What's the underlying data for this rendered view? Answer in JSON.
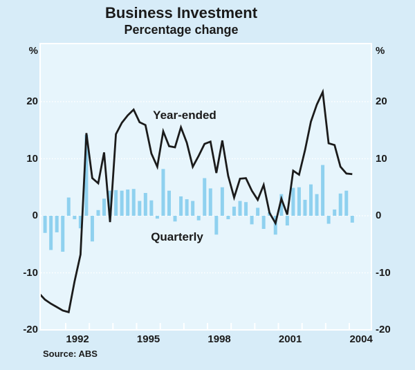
{
  "title": "Business Investment",
  "subtitle": "Percentage change",
  "source": "Source: ABS",
  "annotations": {
    "line_label": "Year-ended",
    "bar_label": "Quarterly"
  },
  "axis": {
    "unit_left": "%",
    "unit_right": "%",
    "y_ticks": [
      20,
      10,
      0,
      -10,
      -20
    ],
    "x_labels": [
      "1992",
      "1995",
      "1998",
      "2001",
      "2004"
    ]
  },
  "colors": {
    "page_bg": "#d7ecf8",
    "plot_bg": "#e7f5fc",
    "bar": "#8fd1ef",
    "line": "#1b1b1b",
    "grid": "#ffffff",
    "text": "#1a1a1a"
  },
  "chart_data": {
    "type": "mixed",
    "title": "Business Investment",
    "subtitle": "Percentage change",
    "ylabel": "%",
    "ylim": [
      -20,
      30.2
    ],
    "xlim": [
      1990.9,
      2005.0
    ],
    "grid_values": [
      20,
      10,
      0,
      -10
    ],
    "tick_years": [
      1992,
      1993,
      1994,
      1995,
      1996,
      1997,
      1998,
      1999,
      2000,
      2001,
      2002,
      2003,
      2004
    ],
    "series": [
      {
        "name": "Year-ended",
        "type": "line",
        "points": [
          {
            "q": "1990Q4",
            "v": -13.6
          },
          {
            "q": "1991Q1",
            "v": -14.7
          },
          {
            "q": "1991Q2",
            "v": -15.4
          },
          {
            "q": "1991Q3",
            "v": -16.0
          },
          {
            "q": "1991Q4",
            "v": -16.6
          },
          {
            "q": "1992Q1",
            "v": -16.9
          },
          {
            "q": "1992Q2",
            "v": -11.5
          },
          {
            "q": "1992Q3",
            "v": -6.8
          },
          {
            "q": "1992Q4",
            "v": 14.5
          },
          {
            "q": "1993Q1",
            "v": 6.6
          },
          {
            "q": "1993Q2",
            "v": 5.7
          },
          {
            "q": "1993Q3",
            "v": 11.1
          },
          {
            "q": "1993Q4",
            "v": -1.1
          },
          {
            "q": "1994Q1",
            "v": 14.3
          },
          {
            "q": "1994Q2",
            "v": 16.3
          },
          {
            "q": "1994Q3",
            "v": 17.6
          },
          {
            "q": "1994Q4",
            "v": 18.6
          },
          {
            "q": "1995Q1",
            "v": 16.4
          },
          {
            "q": "1995Q2",
            "v": 15.9
          },
          {
            "q": "1995Q3",
            "v": 10.9
          },
          {
            "q": "1995Q4",
            "v": 8.6
          },
          {
            "q": "1996Q1",
            "v": 14.8
          },
          {
            "q": "1996Q2",
            "v": 12.2
          },
          {
            "q": "1996Q3",
            "v": 12.0
          },
          {
            "q": "1996Q4",
            "v": 15.5
          },
          {
            "q": "1997Q1",
            "v": 12.8
          },
          {
            "q": "1997Q2",
            "v": 8.6
          },
          {
            "q": "1997Q3",
            "v": 10.5
          },
          {
            "q": "1997Q4",
            "v": 12.6
          },
          {
            "q": "1998Q1",
            "v": 13.0
          },
          {
            "q": "1998Q2",
            "v": 7.5
          },
          {
            "q": "1998Q3",
            "v": 13.2
          },
          {
            "q": "1998Q4",
            "v": 7.0
          },
          {
            "q": "1999Q1",
            "v": 3.2
          },
          {
            "q": "1999Q2",
            "v": 6.5
          },
          {
            "q": "1999Q3",
            "v": 6.6
          },
          {
            "q": "1999Q4",
            "v": 4.4
          },
          {
            "q": "2000Q1",
            "v": 2.8
          },
          {
            "q": "2000Q2",
            "v": 5.4
          },
          {
            "q": "2000Q3",
            "v": 0.5
          },
          {
            "q": "2000Q4",
            "v": -1.3
          },
          {
            "q": "2001Q1",
            "v": 3.0
          },
          {
            "q": "2001Q2",
            "v": 0.2
          },
          {
            "q": "2001Q3",
            "v": 7.9
          },
          {
            "q": "2001Q4",
            "v": 7.2
          },
          {
            "q": "2002Q1",
            "v": 11.5
          },
          {
            "q": "2002Q2",
            "v": 16.5
          },
          {
            "q": "2002Q3",
            "v": 19.5
          },
          {
            "q": "2002Q4",
            "v": 21.7
          },
          {
            "q": "2003Q1",
            "v": 12.7
          },
          {
            "q": "2003Q2",
            "v": 12.4
          },
          {
            "q": "2003Q3",
            "v": 8.6
          },
          {
            "q": "2003Q4",
            "v": 7.4
          },
          {
            "q": "2004Q1",
            "v": 7.3
          }
        ]
      },
      {
        "name": "Quarterly",
        "type": "bar",
        "points": [
          {
            "q": "1991Q1",
            "v": -3.0
          },
          {
            "q": "1991Q2",
            "v": -6.0
          },
          {
            "q": "1991Q3",
            "v": -2.9
          },
          {
            "q": "1991Q4",
            "v": -6.3
          },
          {
            "q": "1992Q1",
            "v": 3.2
          },
          {
            "q": "1992Q2",
            "v": -0.6
          },
          {
            "q": "1992Q3",
            "v": -2.2
          },
          {
            "q": "1992Q4",
            "v": 14.2
          },
          {
            "q": "1993Q1",
            "v": -4.5
          },
          {
            "q": "1993Q2",
            "v": 1.0
          },
          {
            "q": "1993Q3",
            "v": 3.0
          },
          {
            "q": "1993Q4",
            "v": 4.4
          },
          {
            "q": "1994Q1",
            "v": 4.5
          },
          {
            "q": "1994Q2",
            "v": 4.4
          },
          {
            "q": "1994Q3",
            "v": 4.6
          },
          {
            "q": "1994Q4",
            "v": 4.7
          },
          {
            "q": "1995Q1",
            "v": 2.6
          },
          {
            "q": "1995Q2",
            "v": 4.0
          },
          {
            "q": "1995Q3",
            "v": 2.7
          },
          {
            "q": "1995Q4",
            "v": -0.5
          },
          {
            "q": "1996Q1",
            "v": 8.2
          },
          {
            "q": "1996Q2",
            "v": 4.4
          },
          {
            "q": "1996Q3",
            "v": -1.0
          },
          {
            "q": "1996Q4",
            "v": 3.4
          },
          {
            "q": "1997Q1",
            "v": 2.9
          },
          {
            "q": "1997Q2",
            "v": 2.6
          },
          {
            "q": "1997Q3",
            "v": -0.8
          },
          {
            "q": "1997Q4",
            "v": 6.6
          },
          {
            "q": "1998Q1",
            "v": 4.8
          },
          {
            "q": "1998Q2",
            "v": -3.3
          },
          {
            "q": "1998Q3",
            "v": 5.0
          },
          {
            "q": "1998Q4",
            "v": -0.6
          },
          {
            "q": "1999Q1",
            "v": 1.6
          },
          {
            "q": "1999Q2",
            "v": 2.6
          },
          {
            "q": "1999Q3",
            "v": 2.4
          },
          {
            "q": "1999Q4",
            "v": -1.5
          },
          {
            "q": "2000Q1",
            "v": 1.4
          },
          {
            "q": "2000Q2",
            "v": -2.3
          },
          {
            "q": "2000Q3",
            "v": 0.6
          },
          {
            "q": "2000Q4",
            "v": -3.3
          },
          {
            "q": "2001Q1",
            "v": 3.8
          },
          {
            "q": "2001Q2",
            "v": -1.7
          },
          {
            "q": "2001Q3",
            "v": 4.9
          },
          {
            "q": "2001Q4",
            "v": 5.0
          },
          {
            "q": "2002Q1",
            "v": 2.8
          },
          {
            "q": "2002Q2",
            "v": 5.5
          },
          {
            "q": "2002Q3",
            "v": 3.8
          },
          {
            "q": "2002Q4",
            "v": 8.9
          },
          {
            "q": "2003Q1",
            "v": -1.4
          },
          {
            "q": "2003Q2",
            "v": 1.1
          },
          {
            "q": "2003Q3",
            "v": 3.9
          },
          {
            "q": "2003Q4",
            "v": 4.4
          },
          {
            "q": "2004Q1",
            "v": -1.2
          }
        ]
      }
    ]
  }
}
